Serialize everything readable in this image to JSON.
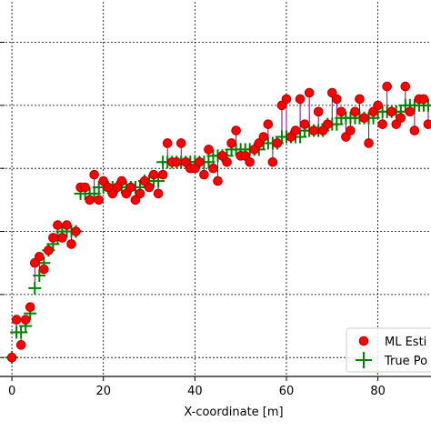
{
  "chart_data": {
    "type": "scatter",
    "title": "",
    "xlabel": "X-coordinate [m]",
    "ylabel": "",
    "xlim": [
      -3,
      92
    ],
    "ylim": [
      0.2,
      6.2
    ],
    "xticks": [
      0,
      20,
      40,
      60,
      80
    ],
    "yticks": [
      0.5,
      1.5,
      2.5,
      3.5,
      4.5,
      5.5
    ],
    "grid": true,
    "legend_position": "bottom-right",
    "stem_color": "#800080",
    "series": [
      {
        "name": "ML Esti",
        "marker": "circle",
        "color": "#ff0000",
        "edge_color": "#b30000",
        "x": [
          0,
          1,
          2,
          3,
          4,
          5,
          6,
          7,
          8,
          9,
          10,
          11,
          12,
          13,
          14,
          15,
          16,
          17,
          18,
          19,
          20,
          21,
          22,
          23,
          24,
          25,
          26,
          27,
          28,
          29,
          30,
          31,
          32,
          33,
          34,
          35,
          36,
          37,
          38,
          39,
          40,
          41,
          42,
          43,
          44,
          45,
          46,
          47,
          48,
          49,
          50,
          51,
          52,
          53,
          54,
          55,
          56,
          57,
          58,
          59,
          60,
          61,
          62,
          63,
          64,
          65,
          66,
          67,
          68,
          69,
          70,
          71,
          72,
          73,
          74,
          75,
          76,
          77,
          78,
          79,
          80,
          81,
          82,
          83,
          84,
          85,
          86,
          87,
          88,
          89,
          90,
          91
        ],
        "y": [
          0.5,
          1.1,
          0.7,
          1.1,
          1.3,
          2.0,
          2.1,
          1.9,
          2.2,
          2.4,
          2.6,
          2.4,
          2.6,
          2.3,
          2.5,
          3.2,
          3.2,
          3.0,
          3.4,
          3.0,
          3.3,
          3.2,
          3.1,
          3.2,
          3.3,
          3.1,
          3.2,
          3.0,
          3.1,
          3.3,
          3.2,
          3.4,
          3.1,
          3.4,
          3.9,
          3.6,
          3.6,
          3.9,
          3.6,
          3.5,
          3.5,
          3.6,
          3.4,
          3.8,
          3.5,
          3.3,
          3.7,
          3.6,
          3.9,
          4.1,
          3.7,
          3.7,
          3.6,
          3.8,
          3.9,
          4.0,
          4.2,
          3.6,
          3.9,
          4.5,
          4.6,
          4.0,
          4.1,
          4.6,
          4.2,
          4.7,
          4.1,
          4.4,
          4.1,
          4.2,
          4.7,
          4.6,
          4.4,
          4.0,
          4.1,
          4.4,
          4.6,
          4.3,
          3.9,
          4.4,
          4.5,
          4.2,
          4.8,
          4.4,
          4.2,
          4.3,
          4.8,
          4.4,
          4.1,
          4.6,
          4.6,
          4.2
        ]
      },
      {
        "name": "True Po",
        "marker": "plus",
        "color": "#008000",
        "x": [
          0,
          1,
          2,
          3,
          4,
          5,
          6,
          7,
          8,
          9,
          10,
          11,
          12,
          13,
          14,
          15,
          16,
          17,
          18,
          19,
          20,
          21,
          22,
          23,
          24,
          25,
          26,
          27,
          28,
          29,
          30,
          31,
          32,
          33,
          34,
          35,
          36,
          37,
          38,
          39,
          40,
          41,
          42,
          43,
          44,
          45,
          46,
          47,
          48,
          49,
          50,
          51,
          52,
          53,
          54,
          55,
          56,
          57,
          58,
          59,
          60,
          61,
          62,
          63,
          64,
          65,
          66,
          67,
          68,
          69,
          70,
          71,
          72,
          73,
          74,
          75,
          76,
          77,
          78,
          79,
          80,
          81,
          82,
          83,
          84,
          85,
          86,
          87,
          88,
          89,
          90,
          91
        ],
        "y": [
          0.5,
          0.9,
          0.9,
          1.0,
          1.2,
          1.6,
          1.8,
          2.0,
          2.2,
          2.3,
          2.4,
          2.5,
          2.5,
          2.5,
          2.5,
          3.1,
          3.1,
          3.1,
          3.1,
          3.2,
          3.2,
          3.2,
          3.2,
          3.2,
          3.2,
          3.2,
          3.2,
          3.2,
          3.2,
          3.3,
          3.3,
          3.3,
          3.3,
          3.6,
          3.6,
          3.6,
          3.6,
          3.6,
          3.6,
          3.6,
          3.6,
          3.6,
          3.6,
          3.6,
          3.7,
          3.7,
          3.7,
          3.7,
          3.8,
          3.8,
          3.8,
          3.8,
          3.8,
          3.8,
          3.8,
          3.9,
          3.9,
          3.9,
          3.9,
          4.0,
          4.0,
          4.0,
          4.0,
          4.0,
          4.1,
          4.1,
          4.1,
          4.1,
          4.1,
          4.2,
          4.2,
          4.2,
          4.3,
          4.3,
          4.3,
          4.3,
          4.3,
          4.3,
          4.3,
          4.3,
          4.4,
          4.4,
          4.4,
          4.4,
          4.4,
          4.4,
          4.5,
          4.5,
          4.5,
          4.5,
          4.5,
          4.5
        ]
      }
    ]
  }
}
